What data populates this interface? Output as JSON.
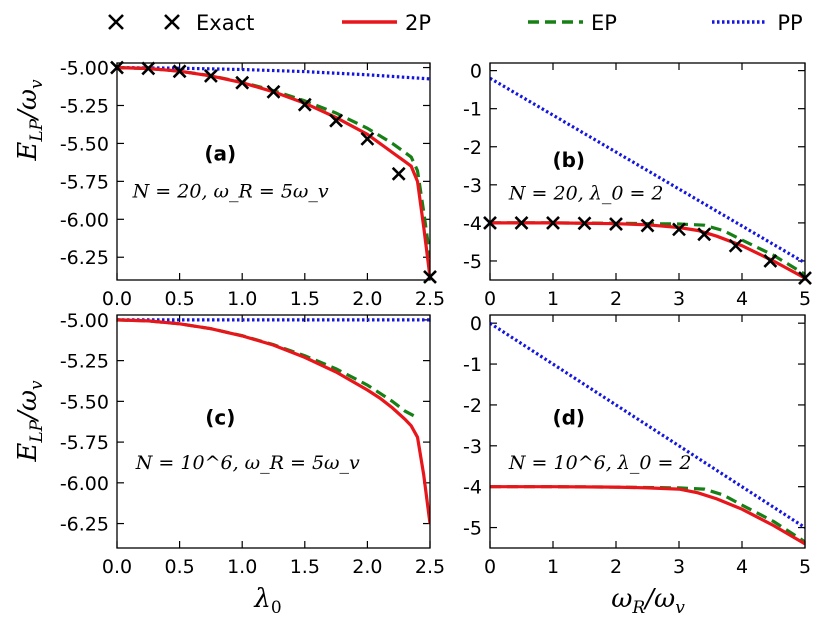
{
  "legend": {
    "placement": "top",
    "entries": [
      {
        "label": "Exact",
        "style": "cross",
        "color": "#000000"
      },
      {
        "label": "2P",
        "style": "solid",
        "color": "#e8151b"
      },
      {
        "label": "EP",
        "style": "dashed",
        "color": "#168016"
      },
      {
        "label": "PP",
        "style": "dotted",
        "color": "#1515e0"
      }
    ]
  },
  "axes_titles": {
    "ylabel_top": "E_LP/ω_v",
    "ylabel_bottom": "E_LP/ω_v",
    "xlabel_left": "λ0",
    "xlabel_right": "ωR/ωv"
  },
  "chart_data": [
    {
      "id": "a",
      "type": "line",
      "label": "(a)",
      "annotation": "N = 20, ω_R = 5ω_v",
      "xlim": [
        0,
        2.5
      ],
      "ylim": [
        -6.4,
        -4.97
      ],
      "xticks": [
        "0.0",
        "0.5",
        "1.0",
        "1.5",
        "2.0",
        "2.5"
      ],
      "yticks": [
        "-5.00",
        "-5.25",
        "-5.50",
        "-5.75",
        "-6.00",
        "-6.25"
      ],
      "show_xticklabels": true,
      "series": [
        {
          "name": "PP",
          "x": [
            0,
            0.5,
            1.0,
            1.5,
            2.0,
            2.5
          ],
          "y": [
            -5.0,
            -5.004,
            -5.013,
            -5.027,
            -5.048,
            -5.075
          ]
        },
        {
          "name": "EP",
          "x": [
            0,
            0.25,
            0.5,
            0.75,
            1.0,
            1.25,
            1.5,
            1.75,
            2.0,
            2.1,
            2.2,
            2.3,
            2.35,
            2.4,
            2.45,
            2.5
          ],
          "y": [
            -5.0,
            -5.006,
            -5.024,
            -5.054,
            -5.097,
            -5.152,
            -5.22,
            -5.3,
            -5.4,
            -5.45,
            -5.5,
            -5.56,
            -5.59,
            -5.68,
            -5.95,
            -6.25
          ]
        },
        {
          "name": "2P",
          "x": [
            0,
            0.25,
            0.5,
            0.75,
            1.0,
            1.25,
            1.5,
            1.75,
            2.0,
            2.1,
            2.2,
            2.3,
            2.35,
            2.4,
            2.45,
            2.5
          ],
          "y": [
            -5.0,
            -5.006,
            -5.024,
            -5.055,
            -5.1,
            -5.16,
            -5.235,
            -5.33,
            -5.44,
            -5.5,
            -5.56,
            -5.62,
            -5.65,
            -5.75,
            -6.05,
            -6.38
          ]
        },
        {
          "name": "Exact",
          "x": [
            0,
            0.25,
            0.5,
            0.75,
            1.0,
            1.25,
            1.5,
            1.75,
            2.0,
            2.25,
            2.5
          ],
          "y": [
            -5.0,
            -5.006,
            -5.025,
            -5.055,
            -5.1,
            -5.16,
            -5.245,
            -5.35,
            -5.47,
            -5.7,
            -6.38
          ]
        }
      ]
    },
    {
      "id": "b",
      "type": "line",
      "label": "(b)",
      "annotation": "N = 20, λ_0 = 2",
      "xlim": [
        0,
        5
      ],
      "ylim": [
        -5.5,
        0.2
      ],
      "xticks": [
        "0",
        "1",
        "2",
        "3",
        "4",
        "5"
      ],
      "yticks": [
        "0",
        "-1",
        "-2",
        "-3",
        "-4",
        "-5"
      ],
      "show_xticklabels": true,
      "series": [
        {
          "name": "PP",
          "x": [
            0,
            5
          ],
          "y": [
            -0.2,
            -5.05
          ]
        },
        {
          "name": "EP",
          "x": [
            0,
            1,
            2,
            3,
            3.4,
            3.7,
            4,
            4.5,
            5
          ],
          "y": [
            -4.0,
            -4.0,
            -4.01,
            -4.03,
            -4.06,
            -4.2,
            -4.45,
            -4.85,
            -5.35
          ]
        },
        {
          "name": "2P",
          "x": [
            0,
            1,
            2,
            2.5,
            3,
            3.3,
            3.6,
            4,
            4.5,
            5
          ],
          "y": [
            -4.0,
            -4.0,
            -4.02,
            -4.05,
            -4.12,
            -4.2,
            -4.35,
            -4.6,
            -5.0,
            -5.45
          ]
        },
        {
          "name": "Exact",
          "x": [
            0,
            0.5,
            1,
            1.5,
            2,
            2.5,
            3,
            3.4,
            3.9,
            4.45,
            5
          ],
          "y": [
            -4.0,
            -4.0,
            -4.0,
            -4.01,
            -4.03,
            -4.07,
            -4.17,
            -4.3,
            -4.6,
            -5.0,
            -5.45
          ]
        }
      ]
    },
    {
      "id": "c",
      "type": "line",
      "label": "(c)",
      "annotation": "N = 10^6, ω_R = 5ω_v",
      "xlim": [
        0,
        2.5
      ],
      "ylim": [
        -6.4,
        -4.97
      ],
      "xticks": [
        "0.0",
        "0.5",
        "1.0",
        "1.5",
        "2.0",
        "2.5"
      ],
      "yticks": [
        "-5.00",
        "-5.25",
        "-5.50",
        "-5.75",
        "-6.00",
        "-6.25"
      ],
      "show_xticklabels": true,
      "series": [
        {
          "name": "PP",
          "x": [
            0,
            2.5
          ],
          "y": [
            -5.0,
            -5.0
          ]
        },
        {
          "name": "EP",
          "x": [
            0,
            0.25,
            0.5,
            0.75,
            1.0,
            1.25,
            1.5,
            1.75,
            2.0,
            2.1,
            2.2,
            2.3,
            2.4
          ],
          "y": [
            -5.0,
            -5.006,
            -5.024,
            -5.054,
            -5.097,
            -5.152,
            -5.22,
            -5.3,
            -5.4,
            -5.45,
            -5.5,
            -5.56,
            -5.6
          ]
        },
        {
          "name": "2P",
          "x": [
            0,
            0.25,
            0.5,
            0.75,
            1.0,
            1.25,
            1.5,
            1.75,
            2.0,
            2.1,
            2.2,
            2.3,
            2.35,
            2.4,
            2.45,
            2.5
          ],
          "y": [
            -5.0,
            -5.006,
            -5.024,
            -5.054,
            -5.098,
            -5.155,
            -5.23,
            -5.32,
            -5.43,
            -5.48,
            -5.54,
            -5.61,
            -5.65,
            -5.72,
            -5.95,
            -6.25
          ]
        }
      ]
    },
    {
      "id": "d",
      "type": "line",
      "label": "(d)",
      "annotation": "N = 10^6, λ_0 = 2",
      "xlim": [
        0,
        5
      ],
      "ylim": [
        -5.5,
        0.2
      ],
      "xticks": [
        "0",
        "1",
        "2",
        "3",
        "4",
        "5"
      ],
      "yticks": [
        "0",
        "-1",
        "-2",
        "-3",
        "-4",
        "-5"
      ],
      "show_xticklabels": true,
      "series": [
        {
          "name": "PP",
          "x": [
            0,
            5
          ],
          "y": [
            0.0,
            -5.0
          ]
        },
        {
          "name": "EP",
          "x": [
            0,
            1,
            2,
            3,
            3.4,
            3.7,
            4,
            4.5,
            5
          ],
          "y": [
            -4.0,
            -4.0,
            -4.01,
            -4.03,
            -4.06,
            -4.2,
            -4.45,
            -4.85,
            -5.35
          ]
        },
        {
          "name": "2P",
          "x": [
            0,
            1,
            2,
            2.5,
            3,
            3.3,
            3.6,
            4,
            4.5,
            5
          ],
          "y": [
            -4.0,
            -4.0,
            -4.01,
            -4.03,
            -4.06,
            -4.15,
            -4.3,
            -4.55,
            -4.95,
            -5.4
          ]
        }
      ]
    }
  ]
}
